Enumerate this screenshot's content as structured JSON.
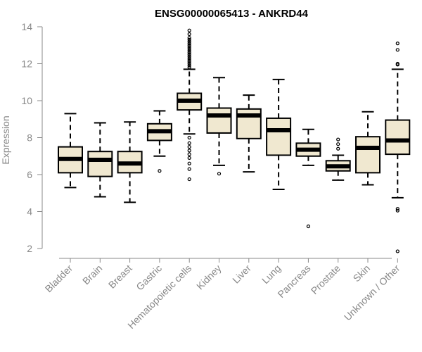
{
  "chart_data": {
    "type": "boxplot",
    "title": "ENSG00000065413 - ANKRD44",
    "xlabel": "",
    "ylabel": "Expression",
    "ylim": [
      1.5,
      14.2
    ],
    "yticks": [
      2,
      4,
      6,
      8,
      10,
      12,
      14
    ],
    "box_color": "#f0e8d0",
    "categories": [
      "Bladder",
      "Brain",
      "Breast",
      "Gastric",
      "Hematopoietic cells",
      "Kidney",
      "Liver",
      "Lung",
      "Pancreas",
      "Prostate",
      "Skin",
      "Unknown / Other"
    ],
    "boxes": [
      {
        "min": 5.3,
        "q1": 6.1,
        "median": 6.85,
        "q3": 7.5,
        "max": 9.3,
        "outliers": []
      },
      {
        "min": 4.8,
        "q1": 5.9,
        "median": 6.8,
        "q3": 7.25,
        "max": 8.8,
        "outliers": []
      },
      {
        "min": 4.5,
        "q1": 6.1,
        "median": 6.6,
        "q3": 7.25,
        "max": 8.85,
        "outliers": []
      },
      {
        "min": 7.0,
        "q1": 7.85,
        "median": 8.35,
        "q3": 8.75,
        "max": 9.45,
        "outliers": [
          6.2
        ]
      },
      {
        "min": 8.2,
        "q1": 9.5,
        "median": 10.0,
        "q3": 10.4,
        "max": 11.7,
        "outliers": [
          13.8,
          13.6,
          13.4,
          13.3,
          13.2,
          13.1,
          13.0,
          12.9,
          12.8,
          12.7,
          12.6,
          12.5,
          12.4,
          12.3,
          12.2,
          12.1,
          12.0,
          11.9,
          11.8,
          8.0,
          7.7,
          7.5,
          7.3,
          7.1,
          6.9,
          6.6,
          6.3,
          5.75
        ]
      },
      {
        "min": 6.5,
        "q1": 8.25,
        "median": 9.2,
        "q3": 9.6,
        "max": 11.25,
        "outliers": [
          6.05
        ]
      },
      {
        "min": 6.15,
        "q1": 7.95,
        "median": 9.2,
        "q3": 9.55,
        "max": 10.3,
        "outliers": []
      },
      {
        "min": 5.2,
        "q1": 7.05,
        "median": 8.4,
        "q3": 9.05,
        "max": 11.15,
        "outliers": []
      },
      {
        "min": 6.5,
        "q1": 7.0,
        "median": 7.35,
        "q3": 7.7,
        "max": 8.45,
        "outliers": [
          3.2
        ]
      },
      {
        "min": 5.7,
        "q1": 6.2,
        "median": 6.45,
        "q3": 6.75,
        "max": 7.05,
        "outliers": [
          7.9,
          7.65,
          7.4
        ]
      },
      {
        "min": 5.45,
        "q1": 6.1,
        "median": 7.45,
        "q3": 8.05,
        "max": 9.4,
        "outliers": []
      },
      {
        "min": 4.75,
        "q1": 7.1,
        "median": 7.85,
        "q3": 8.95,
        "max": 11.7,
        "outliers": [
          13.1,
          12.75,
          12.0,
          11.95,
          4.15,
          4.05,
          1.85
        ]
      }
    ]
  }
}
